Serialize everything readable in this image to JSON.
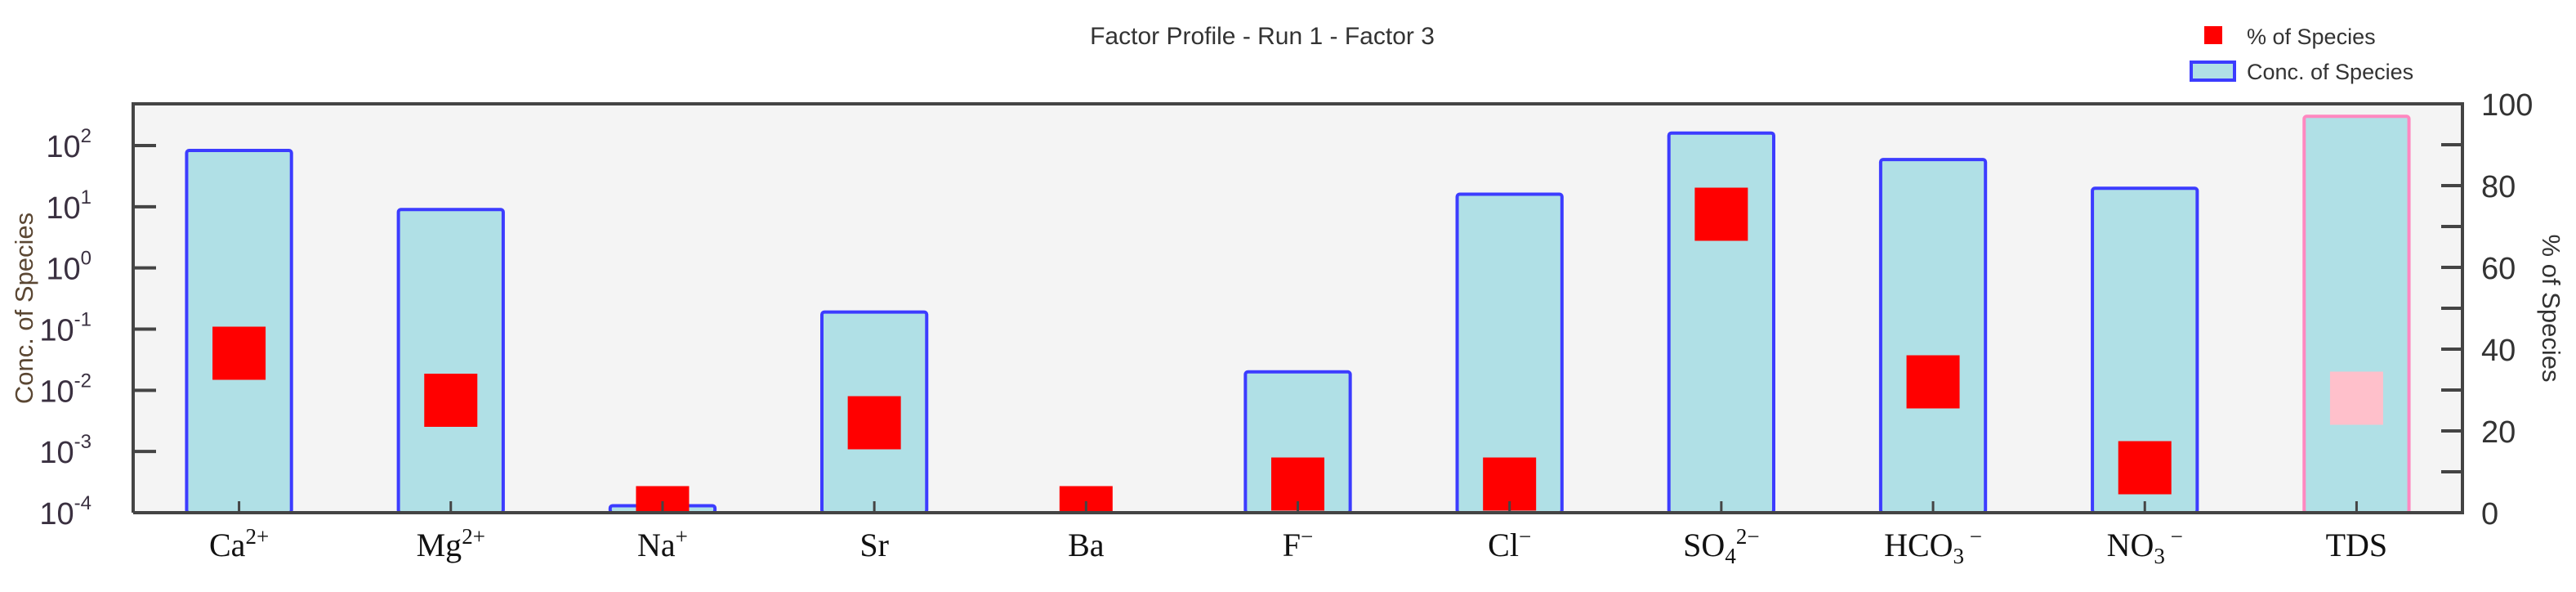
{
  "chart_data": {
    "type": "bar",
    "title": "Factor Profile - Run 1 - Factor 3",
    "ylabel": "Conc. of Species",
    "y2label": "% of Species",
    "yscale": "log",
    "ylim": [
      0.0001,
      480
    ],
    "y_ticks": [
      {
        "base": "10",
        "exp": "2",
        "value": 100
      },
      {
        "base": "10",
        "exp": "1",
        "value": 10
      },
      {
        "base": "10",
        "exp": "0",
        "value": 1
      },
      {
        "base": "10",
        "exp": "-1",
        "value": 0.1
      },
      {
        "base": "10",
        "exp": "-2",
        "value": 0.01
      },
      {
        "base": "10",
        "exp": "-3",
        "value": 0.001
      },
      {
        "base": "10",
        "exp": "-4",
        "value": 0.0001
      }
    ],
    "y2lim": [
      0,
      100
    ],
    "y2_ticks": [
      "0",
      "20",
      "40",
      "60",
      "80",
      "100"
    ],
    "grid": false,
    "legend_placement": "top-right",
    "legend": [
      {
        "label": "% of Species",
        "kind": "square",
        "color": "#ff0000"
      },
      {
        "label": "Conc. of Species",
        "kind": "bar",
        "fill": "#b0e0e6",
        "stroke": "#3c3cff"
      }
    ],
    "categories": [
      {
        "base": "Ca",
        "sub": "",
        "sup": "2+"
      },
      {
        "base": "Mg",
        "sub": "",
        "sup": "2+"
      },
      {
        "base": "Na",
        "sub": "",
        "sup": "+"
      },
      {
        "base": "Sr",
        "sub": "",
        "sup": ""
      },
      {
        "base": "Ba",
        "sub": "",
        "sup": ""
      },
      {
        "base": "F",
        "sub": "",
        "sup": "−"
      },
      {
        "base": "Cl",
        "sub": "",
        "sup": "−"
      },
      {
        "base": "SO",
        "sub": "4",
        "sup": "2−"
      },
      {
        "base": "HCO",
        "sub": "3",
        "sup": " −"
      },
      {
        "base": "NO",
        "sub": "3",
        "sup": " −"
      },
      {
        "base": "TDS",
        "sub": "",
        "sup": ""
      }
    ],
    "series": [
      {
        "name": "Conc. of Species",
        "axis": "left",
        "values": [
          83,
          9,
          0.00013,
          0.19,
          null,
          0.02,
          16,
          160,
          59,
          20,
          300
        ]
      },
      {
        "name": "% of Species",
        "axis": "right",
        "values": [
          39,
          27.5,
          0,
          22,
          0,
          7,
          7,
          73,
          32,
          11,
          28
        ]
      }
    ],
    "colors": {
      "bar_fill": "#b0e0e6",
      "bar_stroke": "#3c3cff",
      "total_bar_stroke": "#ff88c0",
      "marker": "#ff0000",
      "total_marker": "#ffc0cb",
      "plot_bg": "#f4f4f4"
    },
    "highlighted_category": "TDS"
  }
}
